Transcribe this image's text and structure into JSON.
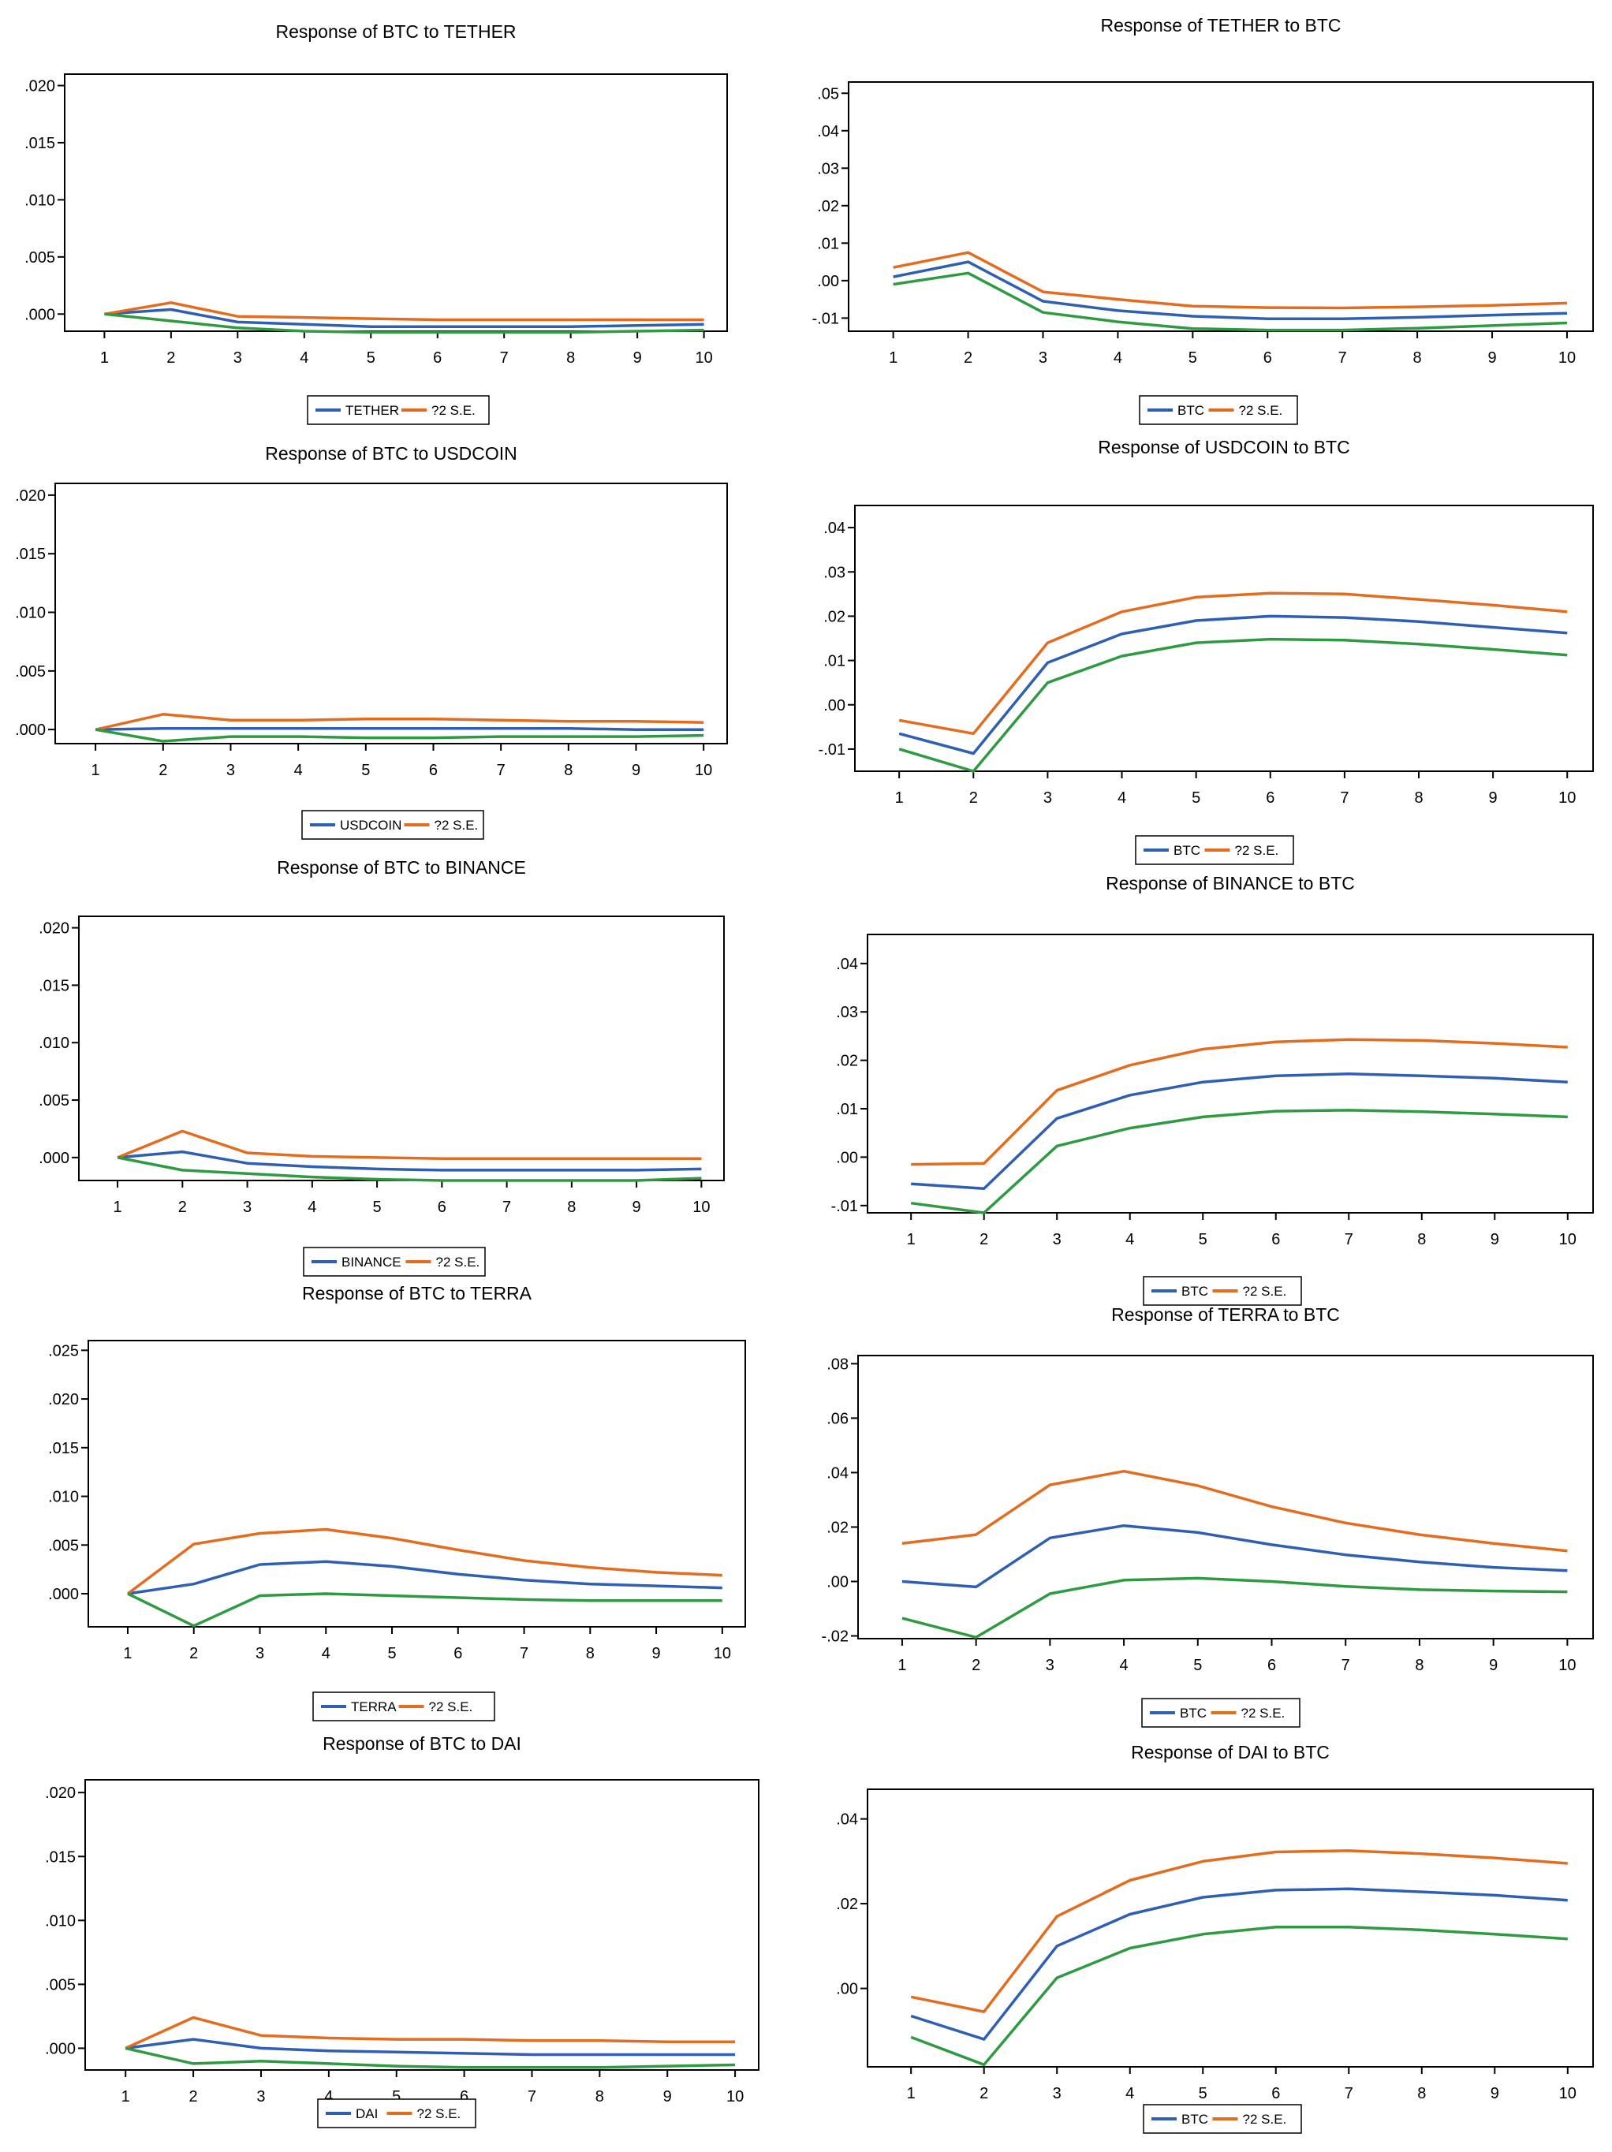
{
  "colors": {
    "response": "#2f5fb3",
    "upper": "#e46c1f",
    "lower": "#2e9a41",
    "axis": "#000000"
  },
  "chart_data": [
    {
      "type": "line",
      "title": "Response of BTC to TETHER",
      "categories": [
        1,
        2,
        3,
        4,
        5,
        6,
        7,
        8,
        9,
        10
      ],
      "ylim": [
        -0.0015,
        0.021
      ],
      "yticks": [
        0,
        0.005,
        0.01,
        0.015,
        0.02
      ],
      "ytick_labels": [
        ".000",
        ".005",
        ".010",
        ".015",
        ".020"
      ],
      "legend_labels": [
        "TETHER",
        "?2 S.E."
      ],
      "series": [
        {
          "name": "TETHER",
          "color": "response",
          "values": [
            0,
            0.0004,
            -0.0007,
            -0.0009,
            -0.0011,
            -0.0011,
            -0.0011,
            -0.0011,
            -0.001,
            -0.0009
          ]
        },
        {
          "name": "?2 S.E.",
          "color": "upper",
          "values": [
            0,
            0.001,
            -0.0002,
            -0.0003,
            -0.0004,
            -0.0005,
            -0.0005,
            -0.0005,
            -0.0005,
            -0.0005
          ]
        },
        {
          "color": "lower",
          "values": [
            0,
            -0.0006,
            -0.0012,
            -0.0015,
            -0.0016,
            -0.0016,
            -0.0016,
            -0.0016,
            -0.0015,
            -0.0014
          ]
        }
      ]
    },
    {
      "type": "line",
      "title": "Response of TETHER to BTC",
      "categories": [
        1,
        2,
        3,
        4,
        5,
        6,
        7,
        8,
        9,
        10
      ],
      "ylim": [
        -0.0135,
        0.053
      ],
      "yticks": [
        -0.01,
        0,
        0.01,
        0.02,
        0.03,
        0.04,
        0.05
      ],
      "ytick_labels": [
        "-.01",
        ".00",
        ".01",
        ".02",
        ".03",
        ".04",
        ".05"
      ],
      "legend_labels": [
        "BTC",
        "?2 S.E."
      ],
      "series": [
        {
          "name": "BTC",
          "color": "response",
          "values": [
            0.001,
            0.005,
            -0.0055,
            -0.008,
            -0.0095,
            -0.0102,
            -0.0102,
            -0.0098,
            -0.0092,
            -0.0087
          ]
        },
        {
          "name": "?2 S.E.",
          "color": "upper",
          "values": [
            0.0035,
            0.0075,
            -0.003,
            -0.005,
            -0.0068,
            -0.0072,
            -0.0073,
            -0.007,
            -0.0066,
            -0.006
          ]
        },
        {
          "color": "lower",
          "values": [
            -0.001,
            0.002,
            -0.0085,
            -0.011,
            -0.0128,
            -0.0132,
            -0.0132,
            -0.0127,
            -0.012,
            -0.0113
          ]
        }
      ]
    },
    {
      "type": "line",
      "title": "Response of BTC to USDCOIN",
      "categories": [
        1,
        2,
        3,
        4,
        5,
        6,
        7,
        8,
        9,
        10
      ],
      "ylim": [
        -0.0012,
        0.021
      ],
      "yticks": [
        0,
        0.005,
        0.01,
        0.015,
        0.02
      ],
      "ytick_labels": [
        ".000",
        ".005",
        ".010",
        ".015",
        ".020"
      ],
      "legend_labels": [
        "USDCOIN",
        "?2 S.E."
      ],
      "series": [
        {
          "name": "USDCOIN",
          "color": "response",
          "values": [
            0,
            0.0001,
            0.0001,
            0.0001,
            0.0001,
            0.0001,
            0.0001,
            0.0001,
            0,
            0
          ]
        },
        {
          "name": "?2 S.E.",
          "color": "upper",
          "values": [
            0,
            0.0013,
            0.0008,
            0.0008,
            0.0009,
            0.0009,
            0.0008,
            0.0007,
            0.0007,
            0.0006
          ]
        },
        {
          "color": "lower",
          "values": [
            0,
            -0.001,
            -0.0006,
            -0.0006,
            -0.0007,
            -0.0007,
            -0.0006,
            -0.0006,
            -0.0006,
            -0.0005
          ]
        }
      ]
    },
    {
      "type": "line",
      "title": "Response of USDCOIN to BTC",
      "categories": [
        1,
        2,
        3,
        4,
        5,
        6,
        7,
        8,
        9,
        10
      ],
      "ylim": [
        -0.015,
        0.045
      ],
      "yticks": [
        -0.01,
        0,
        0.01,
        0.02,
        0.03,
        0.04
      ],
      "ytick_labels": [
        "-.01",
        ".00",
        ".01",
        ".02",
        ".03",
        ".04"
      ],
      "legend_labels": [
        "BTC",
        "?2 S.E."
      ],
      "series": [
        {
          "name": "BTC",
          "color": "response",
          "values": [
            -0.0065,
            -0.011,
            0.0095,
            0.016,
            0.019,
            0.02,
            0.0197,
            0.0188,
            0.0175,
            0.0162
          ]
        },
        {
          "name": "?2 S.E.",
          "color": "upper",
          "values": [
            -0.0035,
            -0.0065,
            0.014,
            0.021,
            0.0243,
            0.0252,
            0.025,
            0.0238,
            0.0225,
            0.021
          ]
        },
        {
          "color": "lower",
          "values": [
            -0.01,
            -0.015,
            0.005,
            0.011,
            0.014,
            0.0148,
            0.0146,
            0.0137,
            0.0125,
            0.0112
          ]
        }
      ]
    },
    {
      "type": "line",
      "title": "Response of BTC to BINANCE",
      "categories": [
        1,
        2,
        3,
        4,
        5,
        6,
        7,
        8,
        9,
        10
      ],
      "ylim": [
        -0.002,
        0.021
      ],
      "yticks": [
        0,
        0.005,
        0.01,
        0.015,
        0.02
      ],
      "ytick_labels": [
        ".000",
        ".005",
        ".010",
        ".015",
        ".020"
      ],
      "legend_labels": [
        "BINANCE",
        "?2 S.E."
      ],
      "series": [
        {
          "name": "BINANCE",
          "color": "response",
          "values": [
            0,
            0.0005,
            -0.0005,
            -0.0008,
            -0.001,
            -0.0011,
            -0.0011,
            -0.0011,
            -0.0011,
            -0.001
          ]
        },
        {
          "name": "?2 S.E.",
          "color": "upper",
          "values": [
            0,
            0.0023,
            0.0004,
            0.0001,
            0,
            -0.0001,
            -0.0001,
            -0.0001,
            -0.0001,
            -0.0001
          ]
        },
        {
          "color": "lower",
          "values": [
            0,
            -0.0011,
            -0.0014,
            -0.0017,
            -0.0019,
            -0.002,
            -0.002,
            -0.002,
            -0.002,
            -0.0018
          ]
        }
      ]
    },
    {
      "type": "line",
      "title": "Response of BINANCE to BTC",
      "categories": [
        1,
        2,
        3,
        4,
        5,
        6,
        7,
        8,
        9,
        10
      ],
      "ylim": [
        -0.0115,
        0.046
      ],
      "yticks": [
        -0.01,
        0,
        0.01,
        0.02,
        0.03,
        0.04
      ],
      "ytick_labels": [
        "-.01",
        ".00",
        ".01",
        ".02",
        ".03",
        ".04"
      ],
      "legend_labels": [
        "BTC",
        "?2 S.E."
      ],
      "series": [
        {
          "name": "BTC",
          "color": "response",
          "values": [
            -0.0055,
            -0.0065,
            0.008,
            0.0128,
            0.0155,
            0.0168,
            0.0172,
            0.0168,
            0.0163,
            0.0155
          ]
        },
        {
          "name": "?2 S.E.",
          "color": "upper",
          "values": [
            -0.0015,
            -0.0013,
            0.0138,
            0.019,
            0.0223,
            0.0238,
            0.0243,
            0.0241,
            0.0235,
            0.0227
          ]
        },
        {
          "color": "lower",
          "values": [
            -0.0095,
            -0.0115,
            0.0023,
            0.006,
            0.0083,
            0.0095,
            0.0097,
            0.0094,
            0.0089,
            0.0083
          ]
        }
      ]
    },
    {
      "type": "line",
      "title": "Response of BTC to TERRA",
      "categories": [
        1,
        2,
        3,
        4,
        5,
        6,
        7,
        8,
        9,
        10
      ],
      "ylim": [
        -0.0034,
        0.026
      ],
      "yticks": [
        0,
        0.005,
        0.01,
        0.015,
        0.02,
        0.025
      ],
      "ytick_labels": [
        ".000",
        ".005",
        ".010",
        ".015",
        ".020",
        ".025"
      ],
      "legend_labels": [
        "TERRA",
        "?2 S.E."
      ],
      "series": [
        {
          "name": "TERRA",
          "color": "response",
          "values": [
            0,
            0.001,
            0.003,
            0.0033,
            0.0028,
            0.002,
            0.0014,
            0.001,
            0.0008,
            0.0006
          ]
        },
        {
          "name": "?2 S.E.",
          "color": "upper",
          "values": [
            0,
            0.0051,
            0.0062,
            0.0066,
            0.0057,
            0.0045,
            0.0034,
            0.0027,
            0.0022,
            0.0019
          ]
        },
        {
          "color": "lower",
          "values": [
            0,
            -0.0033,
            -0.0002,
            0,
            -0.0002,
            -0.0004,
            -0.0006,
            -0.0007,
            -0.0007,
            -0.0007
          ]
        }
      ]
    },
    {
      "type": "line",
      "title": "Response of TERRA to BTC",
      "categories": [
        1,
        2,
        3,
        4,
        5,
        6,
        7,
        8,
        9,
        10
      ],
      "ylim": [
        -0.021,
        0.083
      ],
      "yticks": [
        -0.02,
        0,
        0.02,
        0.04,
        0.06,
        0.08
      ],
      "ytick_labels": [
        "-.02",
        ".00",
        ".02",
        ".04",
        ".06",
        ".08"
      ],
      "legend_labels": [
        "BTC",
        "?2 S.E."
      ],
      "series": [
        {
          "name": "BTC",
          "color": "response",
          "values": [
            0,
            -0.002,
            0.016,
            0.0205,
            0.018,
            0.0135,
            0.0098,
            0.0072,
            0.0052,
            0.004
          ]
        },
        {
          "name": "?2 S.E.",
          "color": "upper",
          "values": [
            0.014,
            0.0172,
            0.0355,
            0.0405,
            0.0352,
            0.0275,
            0.0215,
            0.0172,
            0.014,
            0.0112
          ]
        },
        {
          "color": "lower",
          "values": [
            -0.0135,
            -0.0205,
            -0.0045,
            0.0005,
            0.0012,
            0,
            -0.0018,
            -0.003,
            -0.0035,
            -0.0038
          ]
        }
      ]
    },
    {
      "type": "line",
      "title": "Response of BTC to DAI",
      "categories": [
        1,
        2,
        3,
        4,
        5,
        6,
        7,
        8,
        9,
        10
      ],
      "ylim": [
        -0.0017,
        0.021
      ],
      "yticks": [
        0,
        0.005,
        0.01,
        0.015,
        0.02
      ],
      "ytick_labels": [
        ".000",
        ".005",
        ".010",
        ".015",
        ".020"
      ],
      "legend_labels": [
        "DAI",
        "?2 S.E."
      ],
      "series": [
        {
          "name": "DAI",
          "color": "response",
          "values": [
            0,
            0.0007,
            0,
            -0.0002,
            -0.0003,
            -0.0004,
            -0.0005,
            -0.0005,
            -0.0005,
            -0.0005
          ]
        },
        {
          "name": "?2 S.E.",
          "color": "upper",
          "values": [
            0,
            0.0024,
            0.001,
            0.0008,
            0.0007,
            0.0007,
            0.0006,
            0.0006,
            0.0005,
            0.0005
          ]
        },
        {
          "color": "lower",
          "values": [
            0,
            -0.0012,
            -0.001,
            -0.0012,
            -0.0014,
            -0.0015,
            -0.0015,
            -0.0015,
            -0.0014,
            -0.0013
          ]
        }
      ]
    },
    {
      "type": "line",
      "title": "Response of DAI to BTC",
      "categories": [
        1,
        2,
        3,
        4,
        5,
        6,
        7,
        8,
        9,
        10
      ],
      "ylim": [
        -0.0185,
        0.047
      ],
      "yticks": [
        0,
        0.02,
        0.04
      ],
      "ytick_labels": [
        ".00",
        ".02",
        ".04"
      ],
      "legend_labels": [
        "BTC",
        "?2 S.E."
      ],
      "series": [
        {
          "name": "BTC",
          "color": "response",
          "values": [
            -0.0065,
            -0.012,
            0.01,
            0.0175,
            0.0215,
            0.0232,
            0.0235,
            0.0228,
            0.022,
            0.0208
          ]
        },
        {
          "name": "?2 S.E.",
          "color": "upper",
          "values": [
            -0.002,
            -0.0055,
            0.017,
            0.0255,
            0.03,
            0.0322,
            0.0325,
            0.0318,
            0.0308,
            0.0295
          ]
        },
        {
          "color": "lower",
          "values": [
            -0.0115,
            -0.018,
            0.0025,
            0.0095,
            0.0128,
            0.0145,
            0.0145,
            0.0138,
            0.0128,
            0.0117
          ]
        }
      ]
    }
  ]
}
